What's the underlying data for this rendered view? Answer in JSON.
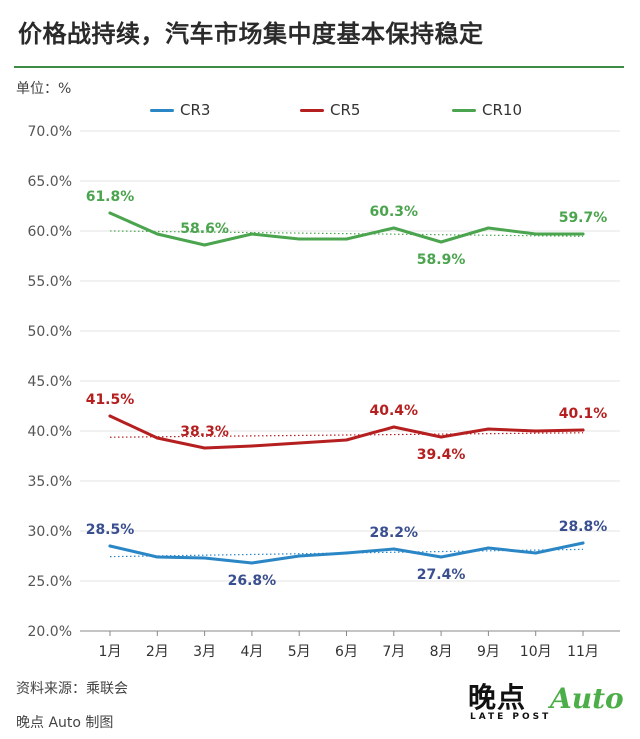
{
  "title": "价格战持续，汽车市场集中度基本保持稳定",
  "unit_label": "单位：%",
  "source": "资料来源：乘联会",
  "credit": "晚点 Auto 制图",
  "logo": {
    "cn": "晚点",
    "en": "LATE POST",
    "auto": "Auto"
  },
  "colors": {
    "accent": "#3c8c46",
    "cr3": "#2b86c5",
    "cr5": "#b51f1f",
    "cr10": "#4ba44e",
    "grid": "#e3e3e3",
    "label_cr3": "#3a4f8f"
  },
  "chart_data": {
    "type": "line",
    "categories": [
      "1月",
      "2月",
      "3月",
      "4月",
      "5月",
      "6月",
      "7月",
      "8月",
      "9月",
      "10月",
      "11月"
    ],
    "ylim": [
      20,
      70
    ],
    "yticks": [
      "20.0%",
      "25.0%",
      "30.0%",
      "35.0%",
      "40.0%",
      "45.0%",
      "50.0%",
      "55.0%",
      "60.0%",
      "65.0%",
      "70.0%"
    ],
    "grid": true,
    "legend_position": "top",
    "trendline": "dotted",
    "series": [
      {
        "name": "CR3",
        "values": [
          28.5,
          27.4,
          27.3,
          26.8,
          27.5,
          27.8,
          28.2,
          27.4,
          28.3,
          27.8,
          28.8
        ],
        "labels": [
          {
            "index": 0,
            "text": "28.5%",
            "pos": "above"
          },
          {
            "index": 3,
            "text": "26.8%",
            "pos": "below"
          },
          {
            "index": 6,
            "text": "28.2%",
            "pos": "above"
          },
          {
            "index": 7,
            "text": "27.4%",
            "pos": "below"
          },
          {
            "index": 10,
            "text": "28.8%",
            "pos": "above"
          }
        ]
      },
      {
        "name": "CR5",
        "values": [
          41.5,
          39.3,
          38.3,
          38.5,
          38.8,
          39.1,
          40.4,
          39.4,
          40.2,
          40.0,
          40.1
        ],
        "labels": [
          {
            "index": 0,
            "text": "41.5%",
            "pos": "above"
          },
          {
            "index": 2,
            "text": "38.3%",
            "pos": "above"
          },
          {
            "index": 6,
            "text": "40.4%",
            "pos": "above"
          },
          {
            "index": 7,
            "text": "39.4%",
            "pos": "below"
          },
          {
            "index": 10,
            "text": "40.1%",
            "pos": "above"
          }
        ]
      },
      {
        "name": "CR10",
        "values": [
          61.8,
          59.7,
          58.6,
          59.7,
          59.2,
          59.2,
          60.3,
          58.9,
          60.3,
          59.7,
          59.7
        ],
        "labels": [
          {
            "index": 0,
            "text": "61.8%",
            "pos": "above"
          },
          {
            "index": 2,
            "text": "58.6%",
            "pos": "above"
          },
          {
            "index": 6,
            "text": "60.3%",
            "pos": "above"
          },
          {
            "index": 7,
            "text": "58.9%",
            "pos": "below"
          },
          {
            "index": 10,
            "text": "59.7%",
            "pos": "above"
          }
        ]
      }
    ]
  }
}
